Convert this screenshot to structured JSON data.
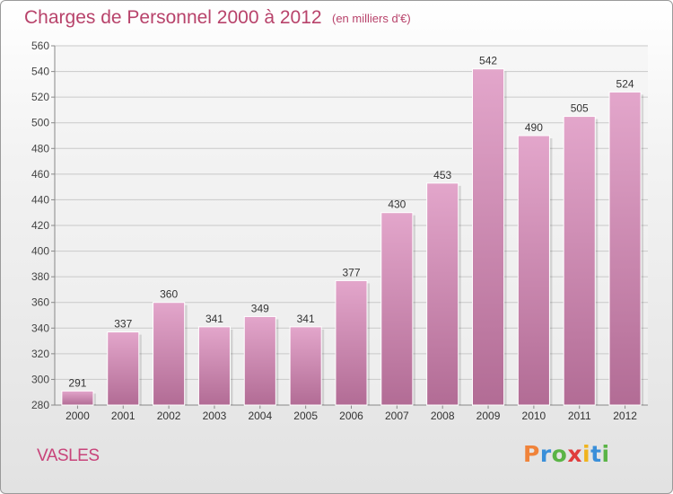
{
  "header": {
    "title": "Charges de Personnel 2000 à 2012",
    "subtitle": "(en milliers d'€)"
  },
  "footer": {
    "commune": "VASLES",
    "logo_text": "Proxiti"
  },
  "colors": {
    "bar_top": "#e3a6cb",
    "bar_bottom": "#b26c95",
    "title": "#b8436b",
    "logo_letters": [
      "#f0833a",
      "#3a8fd9",
      "#5ab446",
      "#e03c3c",
      "#f0b41e",
      "#3a8fd9",
      "#5ab446"
    ]
  },
  "chart_data": {
    "type": "bar",
    "title": "Charges de Personnel 2000 à 2012",
    "subtitle": "(en milliers d'€)",
    "xlabel": "",
    "ylabel": "",
    "categories": [
      "2000",
      "2001",
      "2002",
      "2003",
      "2004",
      "2005",
      "2006",
      "2007",
      "2008",
      "2009",
      "2010",
      "2011",
      "2012"
    ],
    "values": [
      291,
      337,
      360,
      341,
      349,
      341,
      377,
      430,
      453,
      542,
      490,
      505,
      524
    ],
    "data_labels": [
      "291",
      "337",
      "360",
      "341",
      "349",
      "341",
      "377",
      "430",
      "453",
      "542",
      "490",
      "505",
      "524"
    ],
    "ylim": [
      280,
      560
    ],
    "yticks": [
      "280",
      "300",
      "320",
      "340",
      "360",
      "380",
      "400",
      "420",
      "440",
      "460",
      "480",
      "500",
      "520",
      "540",
      "560"
    ],
    "grid": true,
    "legend": "none"
  }
}
